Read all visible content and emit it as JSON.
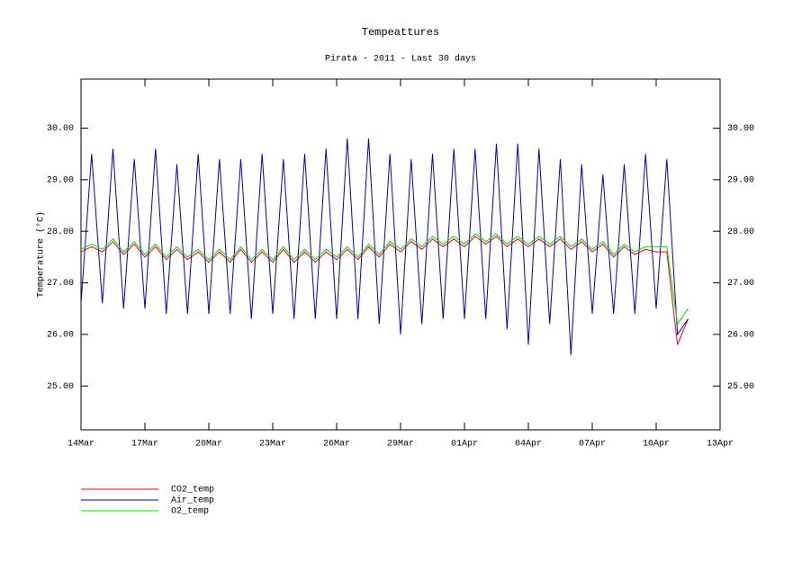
{
  "chart_data": {
    "type": "line",
    "title": "Tempeattures",
    "subtitle": "Pirata - 2011 - Last 30 days",
    "y_label": "Temperature (°C)",
    "x": [
      0,
      0.5,
      1,
      1.5,
      2,
      2.5,
      3,
      3.5,
      4,
      4.5,
      5,
      5.5,
      6,
      6.5,
      7,
      7.5,
      8,
      8.5,
      9,
      9.5,
      10,
      10.5,
      11,
      11.5,
      12,
      12.5,
      13,
      13.5,
      14,
      14.5,
      15,
      15.5,
      16,
      16.5,
      17,
      17.5,
      18,
      18.5,
      19,
      19.5,
      20,
      20.5,
      21,
      21.5,
      22,
      22.5,
      23,
      23.5,
      24,
      24.5,
      25,
      25.5,
      26,
      26.5,
      27,
      27.5,
      28,
      28.5
    ],
    "series": [
      {
        "name": "CO2_temp",
        "color": "#ff0000",
        "values": [
          27.6,
          27.7,
          27.6,
          27.8,
          27.55,
          27.75,
          27.5,
          27.7,
          27.45,
          27.65,
          27.45,
          27.6,
          27.4,
          27.6,
          27.4,
          27.65,
          27.4,
          27.6,
          27.4,
          27.65,
          27.4,
          27.6,
          27.4,
          27.6,
          27.45,
          27.65,
          27.45,
          27.7,
          27.5,
          27.75,
          27.6,
          27.8,
          27.65,
          27.85,
          27.7,
          27.85,
          27.7,
          27.9,
          27.75,
          27.9,
          27.7,
          27.85,
          27.7,
          27.85,
          27.7,
          27.85,
          27.65,
          27.8,
          27.6,
          27.75,
          27.5,
          27.7,
          27.55,
          27.65,
          27.6,
          27.6,
          25.8,
          26.3
        ]
      },
      {
        "name": "Air_temp",
        "color": "#0000cc",
        "values": [
          26.6,
          29.5,
          26.6,
          29.6,
          26.5,
          29.4,
          26.5,
          29.6,
          26.4,
          29.3,
          26.4,
          29.5,
          26.4,
          29.4,
          26.4,
          29.4,
          26.3,
          29.5,
          26.4,
          29.4,
          26.3,
          29.5,
          26.3,
          29.6,
          26.3,
          29.8,
          26.3,
          29.8,
          26.2,
          29.5,
          26.0,
          29.4,
          26.2,
          29.5,
          26.3,
          29.6,
          26.3,
          29.6,
          26.3,
          29.7,
          26.1,
          29.7,
          25.8,
          29.6,
          26.2,
          29.4,
          25.6,
          29.3,
          26.4,
          29.1,
          26.4,
          29.3,
          26.4,
          29.5,
          26.5,
          29.4,
          26.0,
          26.3
        ]
      },
      {
        "name": "O2_temp",
        "color": "#00dd00",
        "values": [
          27.65,
          27.75,
          27.65,
          27.85,
          27.6,
          27.8,
          27.55,
          27.75,
          27.5,
          27.7,
          27.5,
          27.65,
          27.45,
          27.65,
          27.45,
          27.7,
          27.45,
          27.65,
          27.45,
          27.7,
          27.45,
          27.65,
          27.45,
          27.65,
          27.5,
          27.7,
          27.5,
          27.75,
          27.55,
          27.8,
          27.65,
          27.85,
          27.7,
          27.9,
          27.75,
          27.9,
          27.75,
          27.95,
          27.8,
          27.95,
          27.75,
          27.9,
          27.75,
          27.9,
          27.75,
          27.9,
          27.7,
          27.85,
          27.65,
          27.8,
          27.55,
          27.75,
          27.6,
          27.7,
          27.7,
          27.7,
          26.2,
          26.5
        ]
      }
    ],
    "xlim": [
      0,
      30
    ],
    "xticks": [
      {
        "value": 0,
        "label": "14Mar"
      },
      {
        "value": 3,
        "label": "17Mar"
      },
      {
        "value": 6,
        "label": "20Mar"
      },
      {
        "value": 9,
        "label": "23Mar"
      },
      {
        "value": 12,
        "label": "26Mar"
      },
      {
        "value": 15,
        "label": "29Mar"
      },
      {
        "value": 18,
        "label": "01Apr"
      },
      {
        "value": 21,
        "label": "04Apr"
      },
      {
        "value": 24,
        "label": "07Apr"
      },
      {
        "value": 27,
        "label": "10Apr"
      },
      {
        "value": 30,
        "label": "13Apr"
      }
    ],
    "ylim": [
      24.15,
      30.95
    ],
    "yticks": [
      {
        "value": 25,
        "label": "25.00"
      },
      {
        "value": 26,
        "label": "26.00"
      },
      {
        "value": 27,
        "label": "27.00"
      },
      {
        "value": 28,
        "label": "28.00"
      },
      {
        "value": 29,
        "label": "29.00"
      },
      {
        "value": 30,
        "label": "30.00"
      }
    ]
  }
}
